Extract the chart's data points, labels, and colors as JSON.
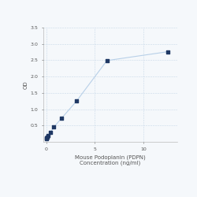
{
  "x": [
    0.0,
    0.049,
    0.098,
    0.195,
    0.39,
    0.781,
    1.563,
    3.125,
    6.25,
    12.5
  ],
  "y": [
    0.108,
    0.127,
    0.148,
    0.196,
    0.282,
    0.452,
    0.718,
    1.25,
    2.49,
    2.76
  ],
  "line_color": "#b8d0e8",
  "marker_color": "#1f3864",
  "marker_size": 3.5,
  "xlabel_line1": "Mouse Podoplanin (PDPN)",
  "xlabel_line2": "Concentration (ng/ml)",
  "ylabel": "OD",
  "ylim": [
    0,
    3.5
  ],
  "xlim": [
    -0.3,
    13.5
  ],
  "yticks": [
    0.5,
    1.0,
    1.5,
    2.0,
    2.5,
    3.0,
    3.5
  ],
  "ytick_labels": [
    "0.5",
    "1.0",
    "1.5",
    "2.0",
    "2.5",
    "3.0",
    "3.5"
  ],
  "xticks": [
    0,
    5,
    10
  ],
  "xtick_labels": [
    "0",
    "5",
    "10"
  ],
  "grid_color": "#c8d8e8",
  "background_color": "#f5f8fb",
  "label_fontsize": 5,
  "tick_fontsize": 4.5,
  "spine_color": "#aaaaaa"
}
